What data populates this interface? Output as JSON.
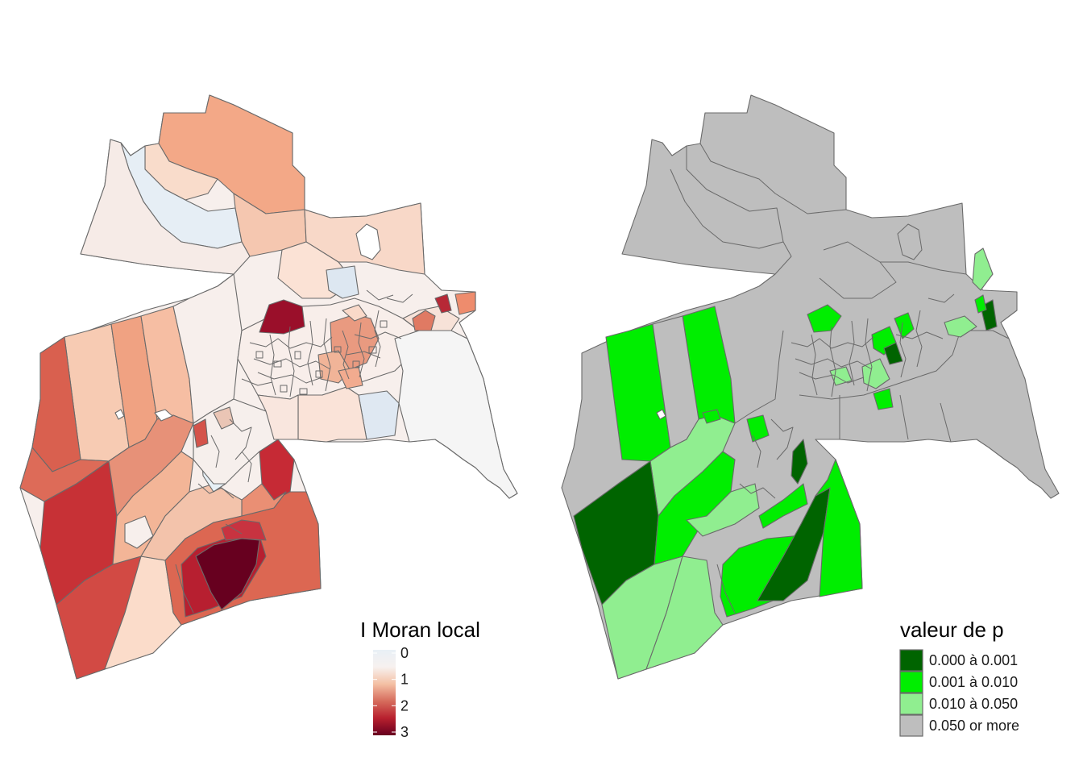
{
  "panels": {
    "left": {
      "legend_title": "I Moran local",
      "legend_type": "continuous",
      "gradient_colors": [
        "#e8f0f6",
        "#f7f1ef",
        "#f4c0a4",
        "#d66c5c",
        "#b8202e",
        "#67001f"
      ],
      "breaks": [
        {
          "label": "0",
          "value": 0
        },
        {
          "label": "1",
          "value": 1
        },
        {
          "label": "2",
          "value": 2
        },
        {
          "label": "3",
          "value": 3
        }
      ]
    },
    "right": {
      "legend_title": "valeur de p",
      "legend_type": "categorical",
      "categories": [
        {
          "label": "0.000 à 0.001",
          "color": "#006400"
        },
        {
          "label": "0.001 à 0.010",
          "color": "#00ee00"
        },
        {
          "label": "0.010 à 0.050",
          "color": "#90ee90"
        },
        {
          "label": "0.050 or more",
          "color": "#bebebe"
        }
      ]
    }
  },
  "colors": {
    "boundary": "#6a6a6a",
    "background": "#ffffff"
  }
}
